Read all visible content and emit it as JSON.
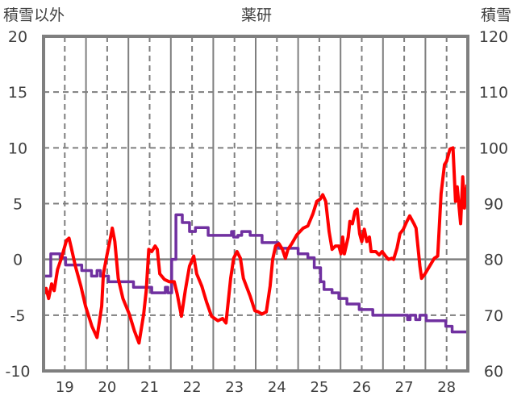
{
  "chart_data": {
    "type": "line",
    "title": "薬研",
    "ylabel": "積雪以外",
    "ylabel_right": "積雪",
    "xlim": [
      18.5,
      28.5
    ],
    "ylim": [
      -10,
      20
    ],
    "ylim_right": [
      60,
      120
    ],
    "x_ticks": [
      19,
      20,
      21,
      22,
      23,
      24,
      25,
      26,
      27,
      28
    ],
    "y_ticks": [
      -10,
      -5,
      0,
      5,
      10,
      15,
      20
    ],
    "y_ticks_right": [
      60,
      70,
      80,
      90,
      100,
      110,
      120
    ],
    "grid": true,
    "series": [
      {
        "name": "積雪以外",
        "axis": "left",
        "color": "#ff0000",
        "points": [
          [
            18.51,
            -3.1
          ],
          [
            18.56,
            -2.6
          ],
          [
            18.62,
            -3.5
          ],
          [
            18.69,
            -2.2
          ],
          [
            18.75,
            -2.8
          ],
          [
            18.83,
            -0.9
          ],
          [
            18.92,
            0.1
          ],
          [
            19.04,
            1.7
          ],
          [
            19.1,
            1.9
          ],
          [
            19.15,
            1.1
          ],
          [
            19.25,
            -0.6
          ],
          [
            19.38,
            -2.4
          ],
          [
            19.49,
            -4.2
          ],
          [
            19.64,
            -6.0
          ],
          [
            19.76,
            -7.0
          ],
          [
            19.87,
            -4.2
          ],
          [
            19.91,
            -1.3
          ],
          [
            19.99,
            0.3
          ],
          [
            20.06,
            1.6
          ],
          [
            20.12,
            2.8
          ],
          [
            20.18,
            1.6
          ],
          [
            20.26,
            -1.7
          ],
          [
            20.37,
            -3.5
          ],
          [
            20.52,
            -4.9
          ],
          [
            20.64,
            -6.4
          ],
          [
            20.75,
            -7.5
          ],
          [
            20.86,
            -4.9
          ],
          [
            20.92,
            -2.8
          ],
          [
            20.98,
            0.9
          ],
          [
            21.05,
            0.7
          ],
          [
            21.13,
            1.2
          ],
          [
            21.18,
            0.9
          ],
          [
            21.24,
            -1.3
          ],
          [
            21.35,
            -1.8
          ],
          [
            21.46,
            -2.0
          ],
          [
            21.58,
            -2.0
          ],
          [
            21.65,
            -3.1
          ],
          [
            21.75,
            -5.1
          ],
          [
            21.84,
            -2.8
          ],
          [
            21.94,
            -0.6
          ],
          [
            22.04,
            0.3
          ],
          [
            22.11,
            -1.3
          ],
          [
            22.23,
            -2.4
          ],
          [
            22.34,
            -3.8
          ],
          [
            22.46,
            -5.1
          ],
          [
            22.61,
            -5.5
          ],
          [
            22.72,
            -5.3
          ],
          [
            22.8,
            -5.7
          ],
          [
            22.91,
            -1.7
          ],
          [
            22.98,
            0.1
          ],
          [
            23.06,
            0.7
          ],
          [
            23.14,
            0.1
          ],
          [
            23.21,
            -1.7
          ],
          [
            23.37,
            -3.3
          ],
          [
            23.48,
            -4.6
          ],
          [
            23.56,
            -4.7
          ],
          [
            23.65,
            -4.9
          ],
          [
            23.75,
            -4.7
          ],
          [
            23.84,
            -2.4
          ],
          [
            23.9,
            0.0
          ],
          [
            23.97,
            1.2
          ],
          [
            24.05,
            1.4
          ],
          [
            24.13,
            0.9
          ],
          [
            24.2,
            0.1
          ],
          [
            24.26,
            0.9
          ],
          [
            24.35,
            1.4
          ],
          [
            24.47,
            2.2
          ],
          [
            24.62,
            2.8
          ],
          [
            24.73,
            3.0
          ],
          [
            24.85,
            4.1
          ],
          [
            24.94,
            5.2
          ],
          [
            25.02,
            5.4
          ],
          [
            25.08,
            5.8
          ],
          [
            25.15,
            5.2
          ],
          [
            25.23,
            2.5
          ],
          [
            25.3,
            0.9
          ],
          [
            25.38,
            1.2
          ],
          [
            25.46,
            1.2
          ],
          [
            25.51,
            0.5
          ],
          [
            25.55,
            2.0
          ],
          [
            25.59,
            0.5
          ],
          [
            25.68,
            2.0
          ],
          [
            25.72,
            3.4
          ],
          [
            25.78,
            3.2
          ],
          [
            25.84,
            4.3
          ],
          [
            25.89,
            4.5
          ],
          [
            25.95,
            2.3
          ],
          [
            26.0,
            1.6
          ],
          [
            26.06,
            2.7
          ],
          [
            26.12,
            1.6
          ],
          [
            26.18,
            2.0
          ],
          [
            26.22,
            0.7
          ],
          [
            26.33,
            0.7
          ],
          [
            26.41,
            0.4
          ],
          [
            26.48,
            0.7
          ],
          [
            26.56,
            0.3
          ],
          [
            26.63,
            0.0
          ],
          [
            26.71,
            0.1
          ],
          [
            26.75,
            0.0
          ],
          [
            26.83,
            1.0
          ],
          [
            26.9,
            2.3
          ],
          [
            26.98,
            2.7
          ],
          [
            27.05,
            3.3
          ],
          [
            27.13,
            3.9
          ],
          [
            27.23,
            3.2
          ],
          [
            27.28,
            2.8
          ],
          [
            27.37,
            -0.6
          ],
          [
            27.41,
            -1.7
          ],
          [
            27.49,
            -1.3
          ],
          [
            27.6,
            -0.6
          ],
          [
            27.71,
            0.1
          ],
          [
            27.79,
            0.3
          ],
          [
            27.87,
            5.9
          ],
          [
            27.95,
            8.5
          ],
          [
            28.0,
            8.8
          ],
          [
            28.08,
            9.9
          ],
          [
            28.15,
            10.0
          ],
          [
            28.21,
            5.2
          ],
          [
            28.25,
            6.5
          ],
          [
            28.33,
            3.2
          ],
          [
            28.38,
            7.4
          ],
          [
            28.42,
            4.6
          ],
          [
            28.48,
            6.7
          ]
        ]
      },
      {
        "name": "積雪",
        "axis": "right",
        "color": "#7030a0",
        "step": true,
        "points": [
          [
            18.5,
            77
          ],
          [
            18.67,
            81
          ],
          [
            18.89,
            80.3
          ],
          [
            19.02,
            79
          ],
          [
            19.4,
            78
          ],
          [
            19.63,
            77
          ],
          [
            19.76,
            78
          ],
          [
            19.84,
            77
          ],
          [
            20.03,
            76
          ],
          [
            20.62,
            75
          ],
          [
            21.05,
            74
          ],
          [
            21.37,
            75
          ],
          [
            21.43,
            74
          ],
          [
            21.52,
            80
          ],
          [
            21.62,
            88
          ],
          [
            21.77,
            86.6
          ],
          [
            21.94,
            85
          ],
          [
            22.08,
            85.7
          ],
          [
            22.38,
            84.3
          ],
          [
            22.89,
            84.3
          ],
          [
            22.93,
            85
          ],
          [
            22.98,
            84
          ],
          [
            23.08,
            84.3
          ],
          [
            23.17,
            85
          ],
          [
            23.37,
            84.3
          ],
          [
            23.65,
            83
          ],
          [
            24.03,
            82
          ],
          [
            24.5,
            81
          ],
          [
            24.73,
            80.3
          ],
          [
            24.88,
            78.5
          ],
          [
            25.03,
            76
          ],
          [
            25.11,
            74.6
          ],
          [
            25.3,
            74
          ],
          [
            25.46,
            73
          ],
          [
            25.65,
            72
          ],
          [
            25.94,
            71
          ],
          [
            26.26,
            70
          ],
          [
            27.08,
            69.2
          ],
          [
            27.14,
            70
          ],
          [
            27.27,
            69.2
          ],
          [
            27.37,
            70
          ],
          [
            27.52,
            69
          ],
          [
            27.98,
            68
          ],
          [
            28.13,
            67
          ],
          [
            28.5,
            67
          ]
        ]
      }
    ]
  }
}
